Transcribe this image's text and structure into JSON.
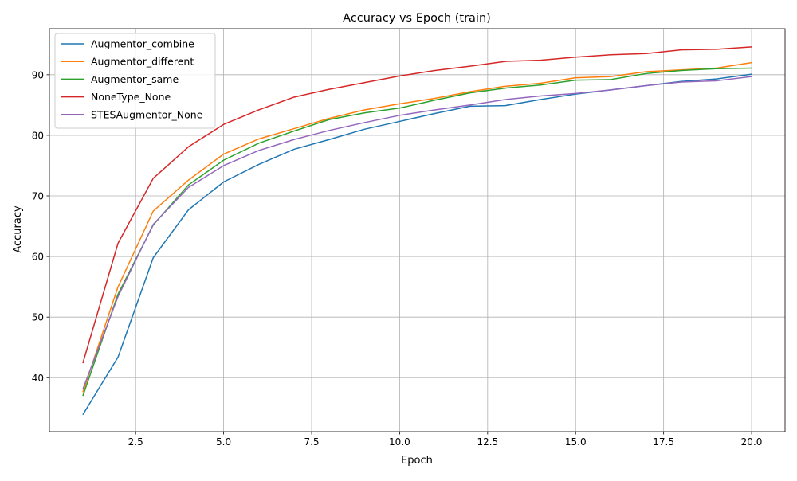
{
  "chart_data": {
    "type": "line",
    "title": "Accuracy vs Epoch (train)",
    "xlabel": "Epoch",
    "ylabel": "Accuracy",
    "xlim": [
      0.05,
      20.95
    ],
    "ylim": [
      31.1,
      97.6
    ],
    "xticks": [
      2.5,
      5.0,
      7.5,
      10.0,
      12.5,
      15.0,
      17.5,
      20.0
    ],
    "xtick_labels": [
      "2.5",
      "5.0",
      "7.5",
      "10.0",
      "12.5",
      "15.0",
      "17.5",
      "20.0"
    ],
    "yticks": [
      40,
      50,
      60,
      70,
      80,
      90
    ],
    "ytick_labels": [
      "40",
      "50",
      "60",
      "70",
      "80",
      "90"
    ],
    "grid": true,
    "legend_position": "top-left",
    "x": [
      1,
      2,
      3,
      4,
      5,
      6,
      7,
      8,
      9,
      10,
      11,
      12,
      13,
      14,
      15,
      16,
      17,
      18,
      19,
      20
    ],
    "series": [
      {
        "name": "Augmentor_combine",
        "color": "#1f77b4",
        "values": [
          33.9,
          43.4,
          59.8,
          67.7,
          72.3,
          75.2,
          77.7,
          79.3,
          81.0,
          82.3,
          83.6,
          84.8,
          84.9,
          85.9,
          86.8,
          87.5,
          88.2,
          88.9,
          89.3,
          90.1
        ]
      },
      {
        "name": "Augmentor_different",
        "color": "#ff7f0e",
        "values": [
          37.6,
          55.0,
          67.5,
          72.6,
          76.9,
          79.4,
          81.1,
          82.8,
          84.2,
          85.2,
          86.1,
          87.2,
          88.1,
          88.6,
          89.5,
          89.7,
          90.5,
          90.8,
          91.1,
          92.0
        ]
      },
      {
        "name": "Augmentor_same",
        "color": "#2ca02c",
        "values": [
          37.0,
          53.8,
          65.2,
          71.8,
          75.9,
          78.7,
          80.7,
          82.6,
          83.7,
          84.5,
          85.8,
          87.0,
          87.8,
          88.3,
          89.1,
          89.2,
          90.2,
          90.7,
          91.0,
          91.1
        ]
      },
      {
        "name": "NoneType_None",
        "color": "#d62728",
        "values": [
          42.4,
          62.2,
          72.9,
          78.1,
          81.8,
          84.2,
          86.3,
          87.6,
          88.7,
          89.8,
          90.7,
          91.4,
          92.2,
          92.4,
          92.9,
          93.3,
          93.5,
          94.1,
          94.2,
          94.6
        ]
      },
      {
        "name": "STESAugmentor_None",
        "color": "#9467bd",
        "values": [
          38.1,
          53.4,
          65.3,
          71.4,
          75.0,
          77.5,
          79.3,
          80.8,
          82.1,
          83.3,
          84.2,
          85.0,
          85.9,
          86.5,
          86.9,
          87.5,
          88.2,
          88.8,
          89.0,
          89.7
        ]
      }
    ]
  }
}
